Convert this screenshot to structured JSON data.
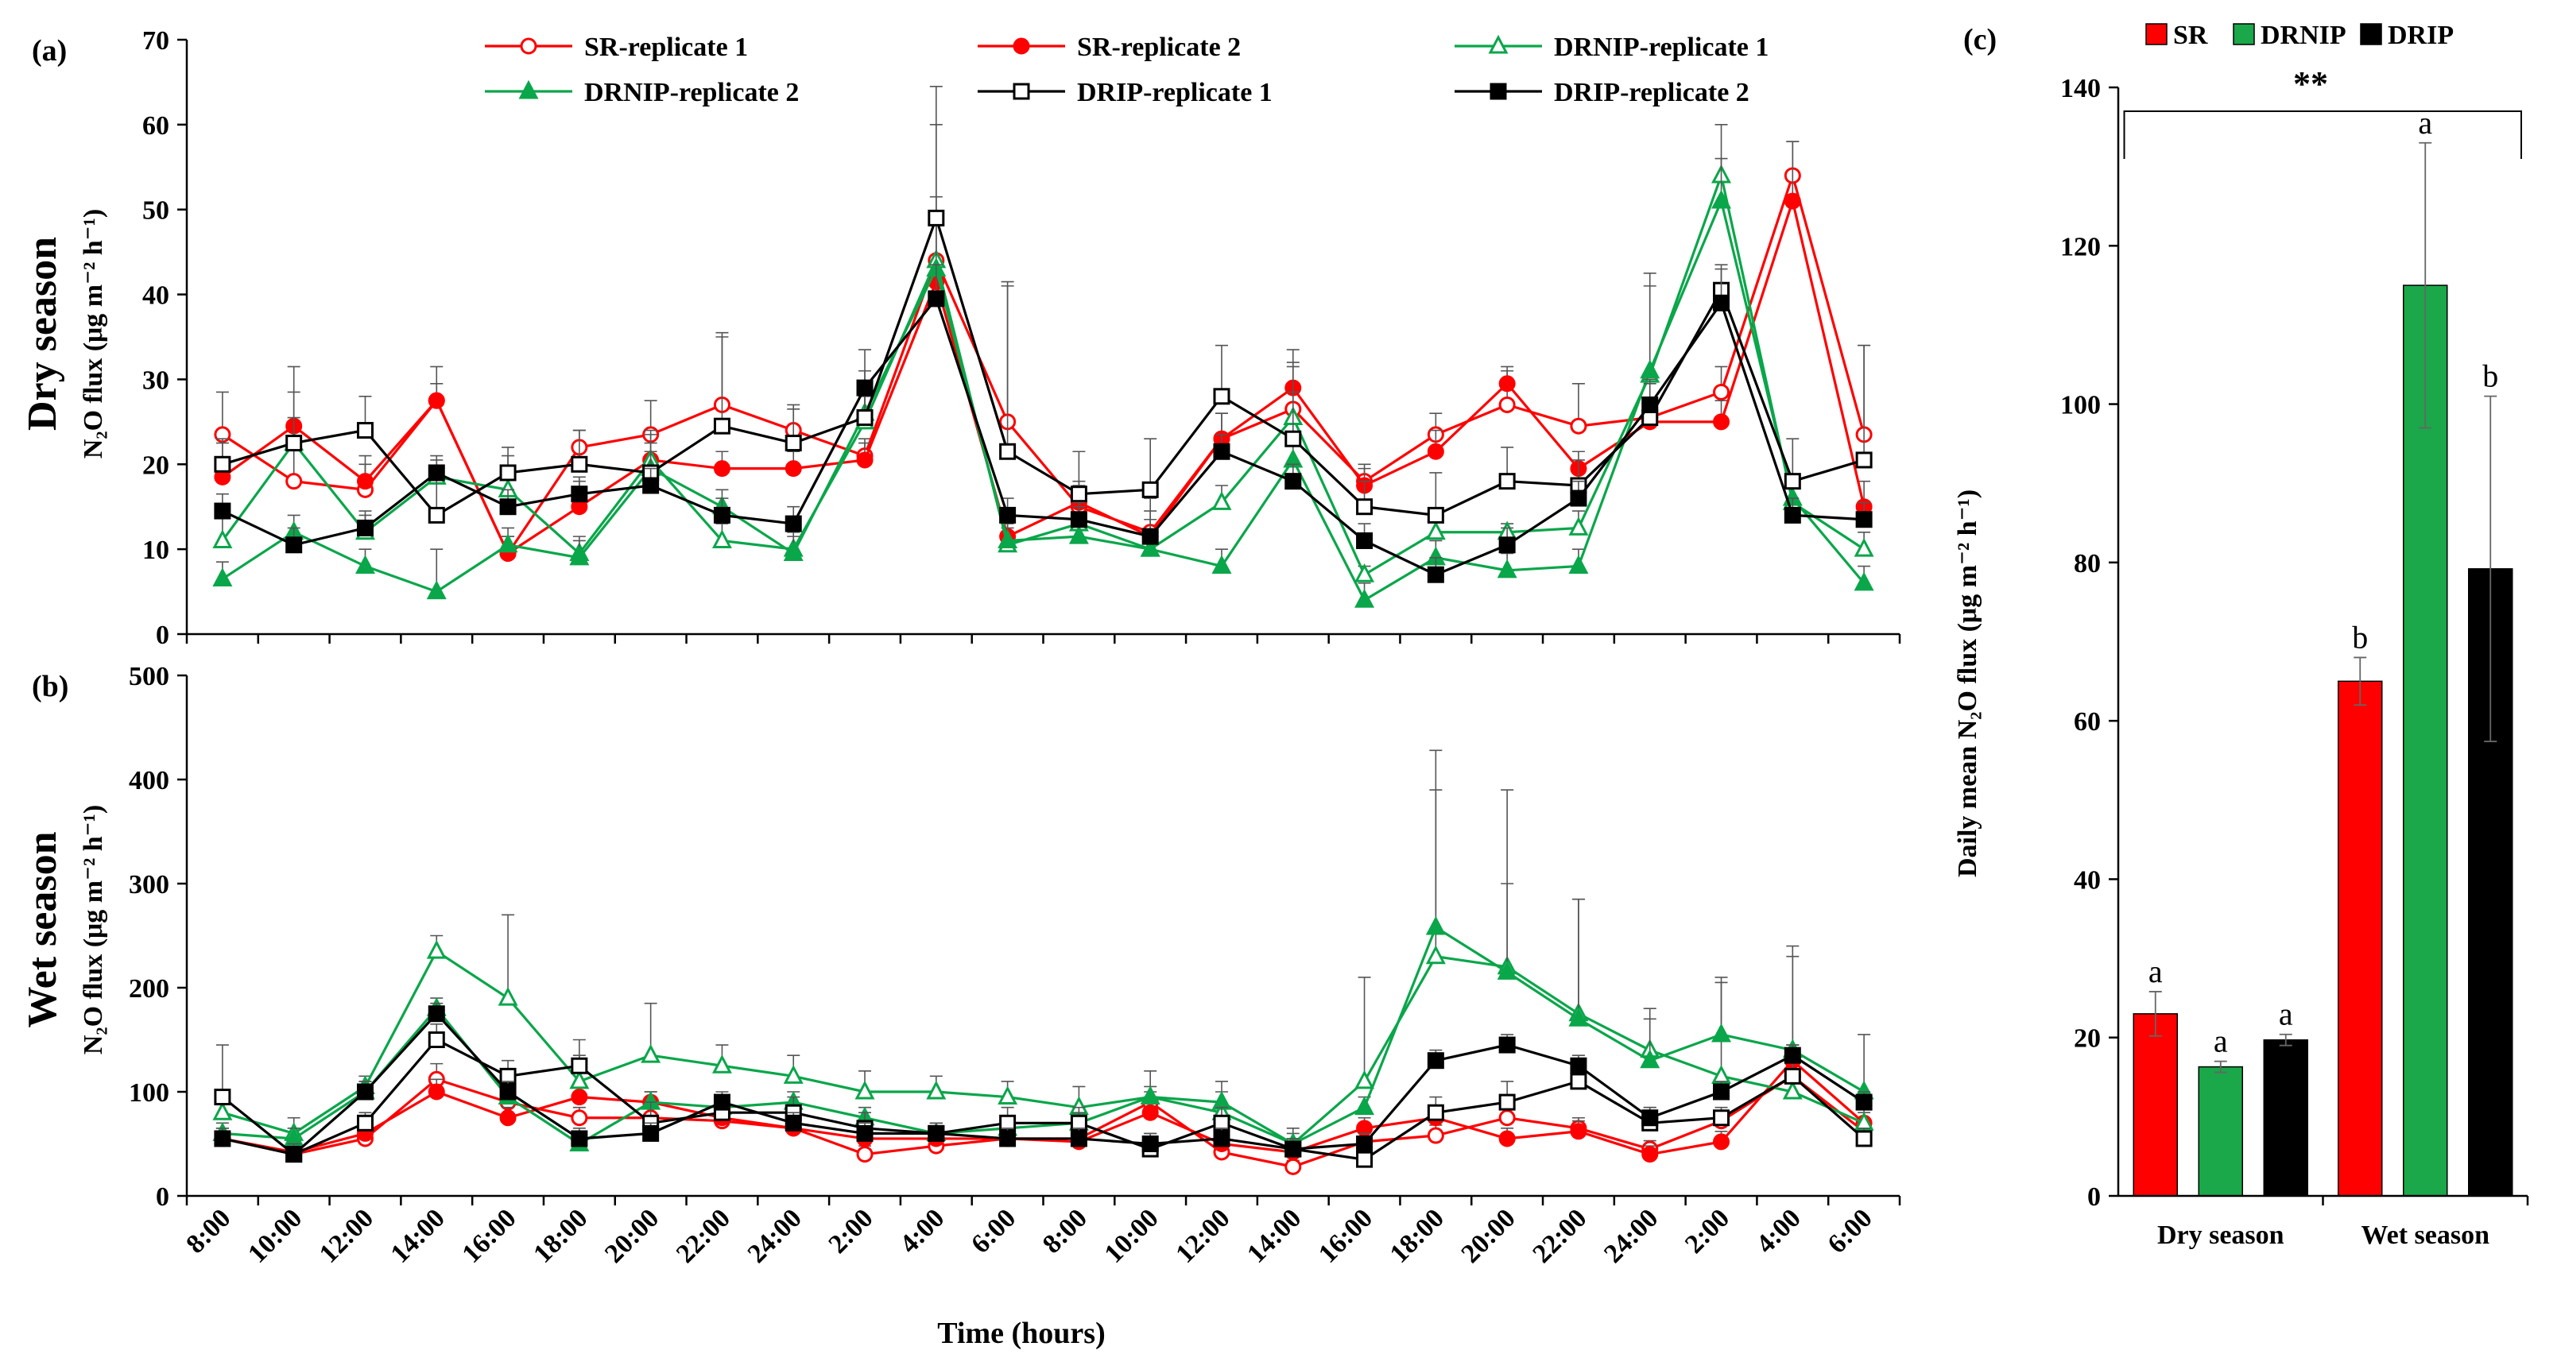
{
  "charts": [
    {
      "panel": "(a)",
      "type": "line",
      "season_label": "Dry season",
      "ylabel": "N₂O flux (μg m⁻² h⁻¹)",
      "ylim": [
        0,
        70
      ],
      "yticks": [
        0,
        10,
        20,
        30,
        40,
        50,
        60,
        70
      ],
      "series": [
        {
          "name": "SR-replicate 1",
          "color": "#ff0000",
          "marker": "circle-open",
          "values": [
            23.5,
            18,
            17,
            27.5,
            9.5,
            22,
            23.5,
            27,
            24,
            21,
            44,
            25,
            15,
            12,
            23,
            26.5,
            18,
            23.5,
            27,
            24.5,
            25.5,
            28.5,
            54,
            23.5
          ],
          "errors": [
            5,
            4,
            3,
            4,
            2,
            2,
            4,
            8,
            3,
            2,
            16,
            16,
            3,
            4,
            3,
            5,
            2,
            2.5,
            4,
            5,
            1,
            3,
            4,
            10.5
          ]
        },
        {
          "name": "SR-replicate 2",
          "color": "#ff0000",
          "marker": "circle-filled",
          "values": [
            18.5,
            24.5,
            18,
            27.5,
            9.5,
            15,
            20.5,
            19.5,
            19.5,
            20.5,
            41.5,
            11.5,
            15.5,
            11.5,
            23,
            29,
            17.5,
            21.5,
            29.5,
            19.5,
            25,
            25,
            51,
            15
          ],
          "errors": [
            4,
            4,
            3,
            2,
            2,
            3,
            3,
            2,
            2,
            2,
            10,
            2,
            2,
            3,
            3,
            3,
            2,
            2.5,
            2,
            2,
            1,
            2.5,
            7,
            3
          ]
        },
        {
          "name": "DRNIP-replicate 1",
          "color": "#0aa64a",
          "marker": "triangle-open",
          "values": [
            11,
            22.5,
            12,
            18.5,
            17,
            9.5,
            20.5,
            11,
            10,
            25,
            44,
            10.5,
            13,
            10,
            15.5,
            25.5,
            7,
            12,
            12,
            12.5,
            30.5,
            54,
            15.5,
            10
          ],
          "errors": [
            3,
            3,
            2,
            2,
            4,
            2,
            2,
            2,
            2,
            3,
            5,
            2,
            2,
            2,
            2,
            3,
            1,
            2,
            1,
            2,
            12,
            6,
            2,
            2
          ]
        },
        {
          "name": "DRNIP-replicate 2",
          "color": "#0aa64a",
          "marker": "triangle-filled",
          "values": [
            6.5,
            12,
            8,
            5,
            10.5,
            9,
            19.5,
            15,
            9.5,
            26,
            43,
            11,
            11.5,
            10,
            8,
            20.5,
            4,
            9,
            7.5,
            8,
            31,
            51,
            16,
            6
          ],
          "errors": [
            2,
            2,
            2,
            5,
            2,
            2,
            2,
            2,
            2,
            2,
            6,
            2,
            2,
            2,
            2,
            3,
            2,
            2,
            2,
            2,
            10,
            5,
            2,
            2
          ]
        },
        {
          "name": "DRIP-replicate 1",
          "color": "#000000",
          "marker": "square-open",
          "values": [
            20,
            22.5,
            24,
            14,
            19,
            20,
            19,
            24.5,
            22.5,
            25.5,
            49,
            21.5,
            16.5,
            17,
            28,
            23,
            15,
            14,
            18,
            17.5,
            25.5,
            40.5,
            18,
            20.5
          ],
          "errors": [
            3,
            9,
            4,
            5,
            3,
            4,
            5,
            11,
            4,
            8,
            15.5,
            20,
            5,
            6,
            6,
            10.5,
            3,
            5,
            4,
            3,
            4,
            3,
            5,
            13.5
          ]
        },
        {
          "name": "DRIP-replicate 2",
          "color": "#000000",
          "marker": "square-filled",
          "values": [
            14.5,
            10.5,
            12.5,
            19,
            15,
            16.5,
            17.5,
            14,
            13,
            29,
            39.5,
            14,
            13.5,
            11.5,
            21.5,
            18,
            11,
            7,
            10.5,
            16,
            27,
            39,
            14,
            13.5
          ],
          "errors": [
            2,
            2,
            2,
            2,
            2,
            2,
            2,
            2,
            2,
            2,
            4,
            2,
            2,
            2,
            2,
            2,
            2,
            2,
            2,
            2,
            3,
            4,
            2,
            2
          ]
        }
      ]
    },
    {
      "panel": "(b)",
      "type": "line",
      "season_label": "Wet season",
      "ylabel": "N₂O flux (μg m⁻² h⁻¹)",
      "ylim": [
        0,
        500
      ],
      "yticks": [
        0,
        100,
        200,
        300,
        400,
        500
      ],
      "series": [
        {
          "name": "SR-replicate 1",
          "color": "#ff0000",
          "marker": "circle-open",
          "values": [
            55,
            40,
            55,
            112,
            90,
            75,
            75,
            72,
            65,
            40,
            48,
            55,
            55,
            90,
            42,
            28,
            52,
            58,
            75,
            65,
            45,
            72,
            115,
            62
          ],
          "errors": [
            10,
            8,
            10,
            15,
            12,
            10,
            10,
            10,
            10,
            8,
            8,
            10,
            10,
            10,
            8,
            6,
            10,
            10,
            12,
            10,
            8,
            10,
            15,
            10
          ]
        },
        {
          "name": "SR-replicate 2",
          "color": "#ff0000",
          "marker": "circle-filled",
          "values": [
            55,
            42,
            60,
            100,
            75,
            95,
            90,
            75,
            65,
            55,
            55,
            55,
            52,
            80,
            50,
            42,
            65,
            75,
            55,
            62,
            40,
            52,
            130,
            70
          ],
          "errors": [
            10,
            8,
            10,
            12,
            10,
            10,
            10,
            10,
            10,
            8,
            8,
            10,
            10,
            10,
            8,
            8,
            10,
            10,
            10,
            10,
            8,
            10,
            15,
            10
          ]
        },
        {
          "name": "DRNIP-replicate 1",
          "color": "#0aa64a",
          "marker": "triangle-open",
          "values": [
            80,
            60,
            105,
            235,
            190,
            110,
            135,
            125,
            115,
            100,
            100,
            95,
            85,
            95,
            80,
            50,
            110,
            230,
            220,
            175,
            140,
            115,
            100,
            70
          ],
          "errors": [
            15,
            15,
            10,
            15,
            80,
            25,
            50,
            20,
            20,
            20,
            15,
            15,
            20,
            25,
            30,
            15,
            100,
            160,
            170,
            110,
            40,
            95,
            130,
            15
          ]
        },
        {
          "name": "DRNIP-replicate 2",
          "color": "#0aa64a",
          "marker": "triangle-filled",
          "values": [
            60,
            55,
            100,
            180,
            95,
            50,
            90,
            85,
            90,
            75,
            60,
            65,
            70,
            95,
            90,
            50,
            85,
            258,
            215,
            170,
            130,
            155,
            140,
            100
          ],
          "errors": [
            10,
            10,
            10,
            10,
            10,
            10,
            10,
            10,
            10,
            10,
            10,
            10,
            10,
            10,
            10,
            10,
            10,
            170,
            85,
            115,
            40,
            50,
            100,
            55
          ]
        },
        {
          "name": "DRIP-replicate 1",
          "color": "#000000",
          "marker": "square-open",
          "values": [
            95,
            40,
            70,
            150,
            115,
            125,
            70,
            80,
            80,
            65,
            60,
            70,
            70,
            45,
            70,
            45,
            35,
            80,
            90,
            110,
            70,
            75,
            115,
            55
          ],
          "errors": [
            50,
            10,
            10,
            15,
            15,
            25,
            20,
            15,
            15,
            15,
            10,
            15,
            15,
            15,
            15,
            10,
            10,
            15,
            20,
            20,
            15,
            10,
            20,
            10
          ]
        },
        {
          "name": "DRIP-replicate 2",
          "color": "#000000",
          "marker": "square-filled",
          "values": [
            55,
            40,
            100,
            175,
            100,
            55,
            60,
            90,
            70,
            60,
            60,
            55,
            55,
            50,
            55,
            45,
            50,
            130,
            145,
            125,
            75,
            100,
            135,
            90
          ],
          "errors": [
            10,
            10,
            10,
            10,
            10,
            10,
            10,
            10,
            10,
            10,
            10,
            10,
            10,
            10,
            10,
            10,
            10,
            10,
            10,
            10,
            10,
            10,
            10,
            10
          ]
        }
      ]
    },
    {
      "panel": "(c)",
      "type": "bar",
      "ylabel": "Daily mean N₂O flux (μg m⁻² h⁻¹)",
      "ylim": [
        0,
        140
      ],
      "yticks": [
        0,
        20,
        40,
        60,
        80,
        100,
        120,
        140
      ],
      "categories": [
        "Dry season",
        "Wet season"
      ],
      "series": [
        {
          "name": "SR",
          "color": "#ff0000",
          "values": [
            23,
            65
          ],
          "errors": [
            2.8,
            3
          ],
          "letters": [
            "a",
            "b"
          ]
        },
        {
          "name": "DRNIP",
          "color": "#1aa84a",
          "values": [
            16.3,
            115
          ],
          "errors": [
            0.7,
            18
          ],
          "letters": [
            "a",
            "a"
          ]
        },
        {
          "name": "DRIP",
          "color": "#000000",
          "values": [
            19.7,
            79.2
          ],
          "errors": [
            0.7,
            21.8
          ],
          "letters": [
            "a",
            "b"
          ]
        }
      ],
      "significance": "**"
    }
  ],
  "x_tick_labels": [
    "8:00",
    "10:00",
    "12:00",
    "14:00",
    "16:00",
    "18:00",
    "20:00",
    "22:00",
    "24:00",
    "2:00",
    "4:00",
    "6:00",
    "8:00",
    "10:00",
    "12:00",
    "14:00",
    "16:00",
    "18:00",
    "20:00",
    "22:00",
    "24:00",
    "2:00",
    "4:00",
    "6:00"
  ],
  "xlabel": "Time (hours)"
}
